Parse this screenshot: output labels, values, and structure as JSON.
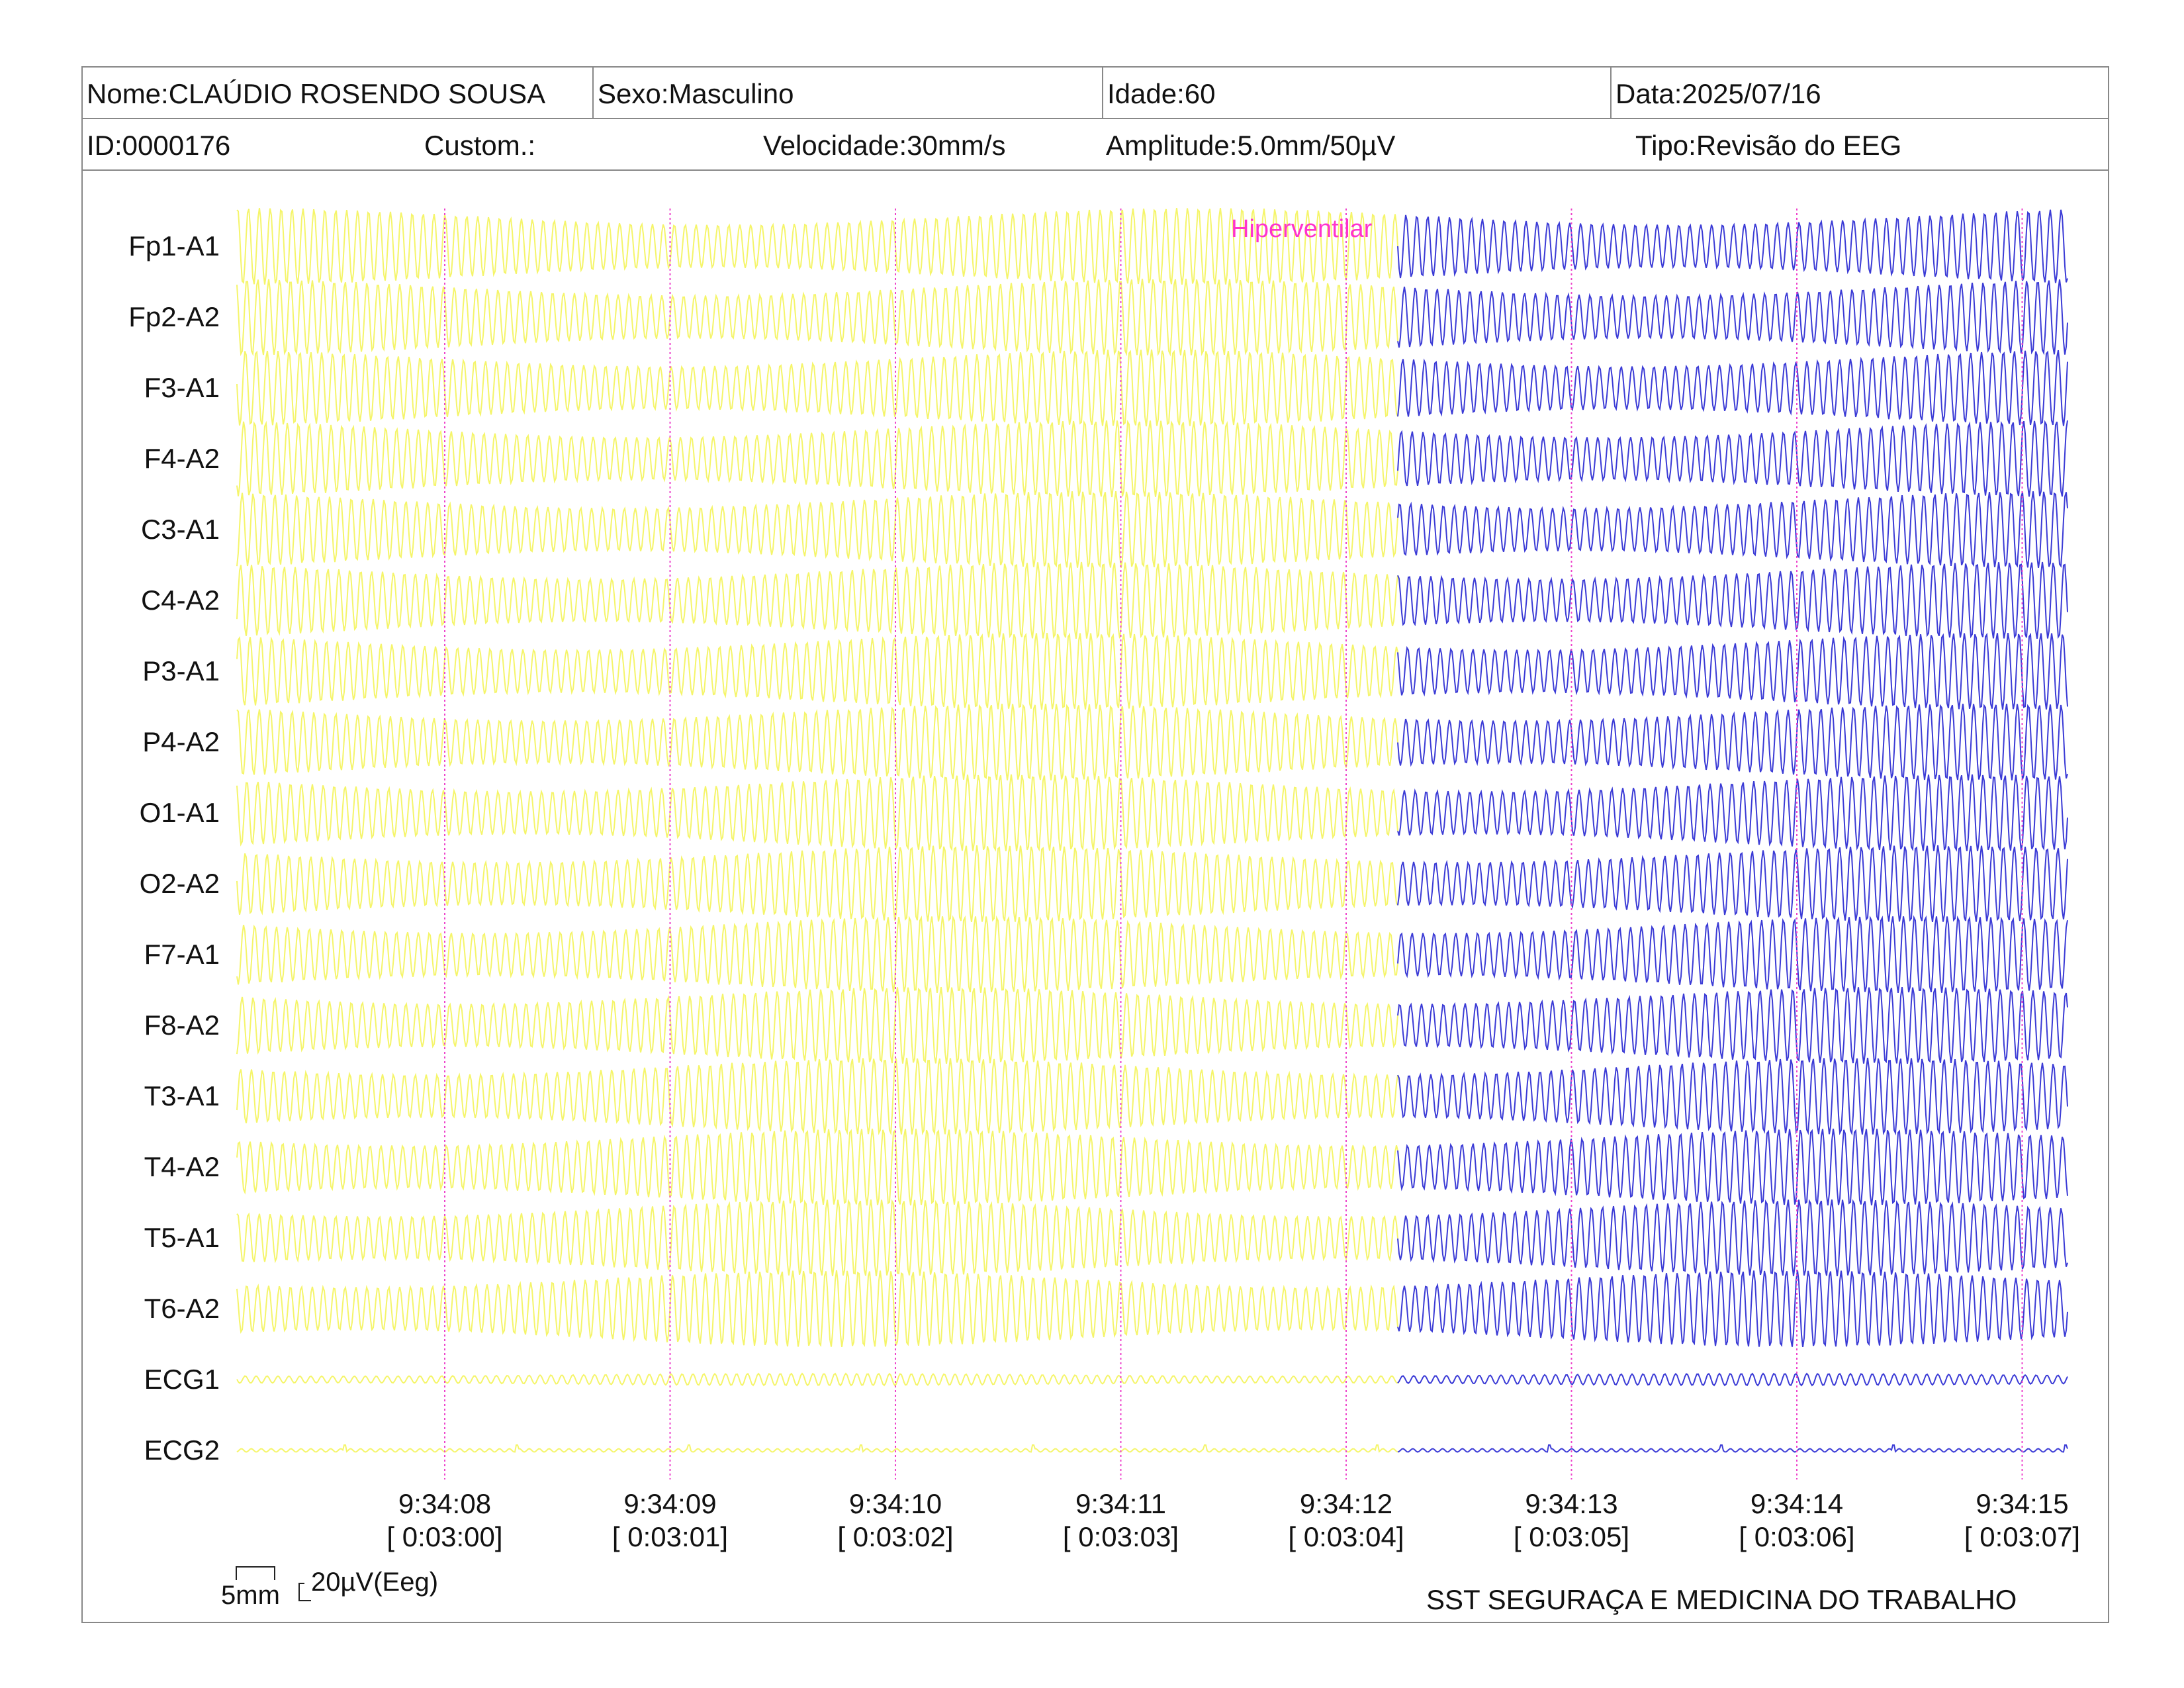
{
  "header": {
    "nome": "Nome:CLAÚDIO ROSENDO SOUSA",
    "sexo": "Sexo:Masculino",
    "idade": "Idade:60",
    "data": "Data:2025/07/16",
    "id": "ID:0000176",
    "custom": "Custom.:",
    "velocidade": "Velocidade:30mm/s",
    "amplitude": "Amplitude:5.0mm/50µV",
    "tipo": "Tipo:Revisão do EEG"
  },
  "event_marker": "Hiperventilar",
  "channels": [
    "Fp1-A1",
    "Fp2-A2",
    "F3-A1",
    "F4-A2",
    "C3-A1",
    "C4-A2",
    "P3-A1",
    "P4-A2",
    "O1-A1",
    "O2-A2",
    "F7-A1",
    "F8-A2",
    "T3-A1",
    "T4-A2",
    "T5-A1",
    "T6-A2",
    "ECG1",
    "ECG2"
  ],
  "time_marks": [
    {
      "clock": "9:34:08",
      "elapsed": "[ 0:03:00]"
    },
    {
      "clock": "9:34:09",
      "elapsed": "[ 0:03:01]"
    },
    {
      "clock": "9:34:10",
      "elapsed": "[ 0:03:02]"
    },
    {
      "clock": "9:34:11",
      "elapsed": "[ 0:03:03]"
    },
    {
      "clock": "9:34:12",
      "elapsed": "[ 0:03:04]"
    },
    {
      "clock": "9:34:13",
      "elapsed": "[ 0:03:05]"
    },
    {
      "clock": "9:34:14",
      "elapsed": "[ 0:03:06]"
    },
    {
      "clock": "9:34:15",
      "elapsed": "[ 0:03:07]"
    }
  ],
  "scale": {
    "time_label": "5mm",
    "amp_label": "20µV(Eeg)"
  },
  "footer": {
    "organization": "SST SEGURAÇA E MEDICINA DO TRABALHO"
  },
  "colors": {
    "pre_event_trace": "#f5f56a",
    "post_event_trace": "#3b3bd6",
    "event_text": "#ff33cc",
    "time_gridline": "#ee44cc"
  }
}
